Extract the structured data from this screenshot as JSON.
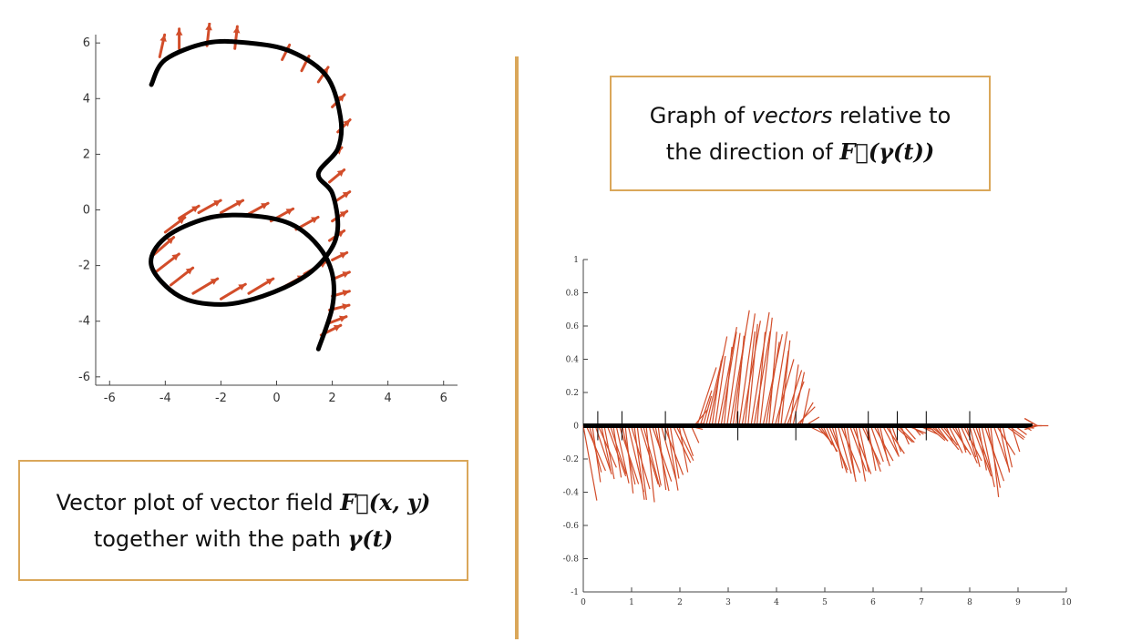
{
  "captions": {
    "left": {
      "line1_pre": "Vector plot of vector field ",
      "line1_math": "F⃗(x, y)",
      "line2_pre": "together with the path ",
      "line2_math": "γ(t)"
    },
    "right": {
      "line1_pre": "Graph of ",
      "line1_em": "vectors",
      "line1_post": " relative to",
      "line2_pre": "the direction of ",
      "line2_math": "F⃗(γ(t))"
    }
  },
  "colors": {
    "arrow": "#d24d2a",
    "path": "#000000",
    "accent": "#daa75a"
  },
  "chart_data": [
    {
      "type": "scatter",
      "xlim": [
        -6.5,
        6.5
      ],
      "ylim": [
        -6.3,
        6.3
      ],
      "xticks": [
        "-6",
        "-4",
        "-2",
        "0",
        "2",
        "4",
        "6"
      ],
      "yticks": [
        "6",
        "4",
        "2",
        "0",
        "-2",
        "-4",
        "-6"
      ],
      "path": {
        "description_points": [
          [
            -4.5,
            4.5
          ],
          [
            -4.0,
            5.4
          ],
          [
            -2.5,
            6.0
          ],
          [
            -1.0,
            6.0
          ],
          [
            0.5,
            5.7
          ],
          [
            1.8,
            4.8
          ],
          [
            2.3,
            3.3
          ],
          [
            2.2,
            2.2
          ],
          [
            1.5,
            1.3
          ],
          [
            2.0,
            0.6
          ],
          [
            2.2,
            -0.6
          ],
          [
            1.9,
            -1.5
          ],
          [
            1.0,
            -2.4
          ],
          [
            -0.5,
            -3.1
          ],
          [
            -2.0,
            -3.4
          ],
          [
            -3.5,
            -3.1
          ],
          [
            -4.5,
            -2.0
          ],
          [
            -4.0,
            -1.0
          ],
          [
            -2.5,
            -0.3
          ],
          [
            -1.0,
            -0.2
          ],
          [
            0.5,
            -0.5
          ],
          [
            1.5,
            -1.3
          ],
          [
            2.0,
            -2.3
          ],
          [
            2.0,
            -3.5
          ],
          [
            1.5,
            -5.0
          ]
        ]
      },
      "vectors": [
        [
          -4.2,
          5.5,
          0.2,
          0.9
        ],
        [
          -3.5,
          5.8,
          0.0,
          0.8
        ],
        [
          -2.5,
          5.9,
          0.1,
          0.9
        ],
        [
          -1.5,
          5.8,
          0.1,
          0.9
        ],
        [
          0.2,
          5.4,
          0.3,
          0.6
        ],
        [
          0.9,
          5.0,
          0.3,
          0.6
        ],
        [
          1.5,
          4.6,
          0.4,
          0.6
        ],
        [
          2.0,
          3.7,
          0.5,
          0.5
        ],
        [
          2.2,
          2.8,
          0.5,
          0.5
        ],
        [
          1.9,
          1.8,
          0.5,
          0.5
        ],
        [
          1.9,
          1.0,
          0.6,
          0.5
        ],
        [
          2.1,
          0.3,
          0.6,
          0.4
        ],
        [
          2.0,
          -0.4,
          0.6,
          0.4
        ],
        [
          1.9,
          -1.1,
          0.6,
          0.4
        ],
        [
          2.0,
          -1.8,
          0.6,
          0.3
        ],
        [
          2.0,
          -2.5,
          0.7,
          0.3
        ],
        [
          2.0,
          -3.1,
          0.7,
          0.2
        ],
        [
          1.9,
          -3.6,
          0.8,
          0.2
        ],
        [
          1.8,
          -4.1,
          0.8,
          0.3
        ],
        [
          1.6,
          -4.5,
          0.8,
          0.4
        ],
        [
          -4.0,
          -0.8,
          0.8,
          0.6
        ],
        [
          -3.5,
          -0.3,
          0.8,
          0.5
        ],
        [
          -2.8,
          -0.1,
          0.9,
          0.5
        ],
        [
          -2.0,
          -0.1,
          0.9,
          0.5
        ],
        [
          -1.1,
          -0.2,
          0.9,
          0.5
        ],
        [
          -0.2,
          -0.4,
          0.9,
          0.5
        ],
        [
          0.7,
          -0.7,
          0.9,
          0.5
        ],
        [
          -4.3,
          -2.2,
          0.9,
          0.7
        ],
        [
          -3.8,
          -2.7,
          0.9,
          0.7
        ],
        [
          -3.0,
          -3.0,
          1.0,
          0.6
        ],
        [
          -2.0,
          -3.2,
          1.0,
          0.6
        ],
        [
          -1.0,
          -3.0,
          1.0,
          0.6
        ],
        [
          -4.4,
          -1.6,
          0.8,
          0.7
        ],
        [
          0.2,
          -2.8,
          0.9,
          0.5
        ],
        [
          1.0,
          -2.3,
          0.9,
          0.5
        ]
      ]
    },
    {
      "type": "line",
      "xlim": [
        0,
        10
      ],
      "ylim": [
        -1,
        1
      ],
      "xticks": [
        "0",
        "1",
        "2",
        "3",
        "4",
        "5",
        "6",
        "7",
        "8",
        "9",
        "10"
      ],
      "yticks": [
        "1",
        "0.8",
        "0.6",
        "0.4",
        "0.2",
        "0",
        "-0.2",
        "-0.4",
        "-0.6",
        "-0.8",
        "-1"
      ],
      "envelope": [
        [
          0.0,
          -0.35
        ],
        [
          0.15,
          -0.58
        ],
        [
          0.4,
          -0.33
        ],
        [
          0.7,
          -0.32
        ],
        [
          1.0,
          -0.4
        ],
        [
          1.3,
          -0.5
        ],
        [
          1.6,
          -0.44
        ],
        [
          1.9,
          -0.42
        ],
        [
          2.2,
          -0.3
        ],
        [
          2.4,
          -0.12
        ],
        [
          2.6,
          0.15
        ],
        [
          2.8,
          0.45
        ],
        [
          3.1,
          0.62
        ],
        [
          3.5,
          0.73
        ],
        [
          3.9,
          0.7
        ],
        [
          4.2,
          0.6
        ],
        [
          4.5,
          0.4
        ],
        [
          4.8,
          0.14
        ],
        [
          5.0,
          -0.05
        ],
        [
          5.2,
          -0.15
        ],
        [
          5.5,
          -0.36
        ],
        [
          5.9,
          -0.35
        ],
        [
          6.2,
          -0.28
        ],
        [
          6.5,
          -0.23
        ],
        [
          6.8,
          -0.12
        ],
        [
          7.2,
          -0.02
        ],
        [
          7.6,
          -0.12
        ],
        [
          8.0,
          -0.2
        ],
        [
          8.3,
          -0.28
        ],
        [
          8.65,
          -0.47
        ],
        [
          8.9,
          -0.25
        ],
        [
          9.2,
          -0.05
        ],
        [
          9.4,
          0.0
        ]
      ],
      "baseline": [
        0,
        9.3
      ],
      "ticks_t": [
        0.3,
        0.8,
        1.7,
        3.2,
        4.4,
        5.9,
        6.5,
        7.1,
        8.0
      ]
    }
  ]
}
